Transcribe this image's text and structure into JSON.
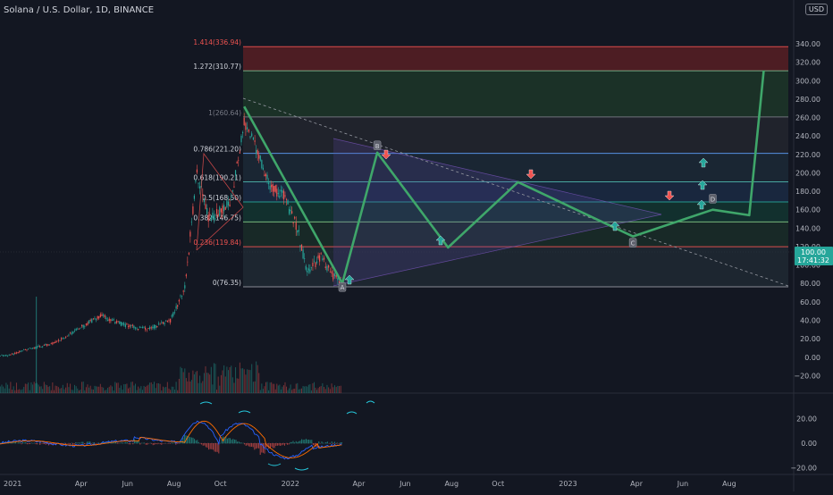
{
  "header": {
    "symbol_title": "Solana / U.S. Dollar, 1D, BINANCE",
    "currency": "USD"
  },
  "colors": {
    "background": "#131722",
    "up": "#26a69a",
    "down": "#ef5350",
    "projection": "#3fa66a",
    "grid": "#2a2e39",
    "text": "#b2b5be"
  },
  "price_axis": {
    "ticks": [
      340,
      320,
      300,
      280,
      260,
      240,
      220,
      200,
      180,
      160,
      140,
      120,
      100,
      80,
      60,
      40,
      20,
      0,
      -20
    ],
    "tick_labels": [
      "340.00",
      "320.00",
      "300.00",
      "280.00",
      "260.00",
      "240.00",
      "220.00",
      "200.00",
      "180.00",
      "160.00",
      "140.00",
      "120.00",
      "100.00",
      "80.00",
      "60.00",
      "40.00",
      "20.00",
      "0.00",
      "−20.00"
    ],
    "current_price": "100.00",
    "countdown": "17:41:32"
  },
  "time_axis": {
    "labels": [
      "2021",
      "Apr",
      "Jun",
      "Aug",
      "Oct",
      "2022",
      "Apr",
      "Jun",
      "Aug",
      "Oct",
      "2023",
      "Apr",
      "Jun",
      "Aug"
    ]
  },
  "oscillator_axis": {
    "ticks": [
      20,
      0,
      -20
    ],
    "tick_labels": [
      "20.00",
      "0.00",
      "−20.00"
    ]
  },
  "fib_levels": [
    {
      "ratio": "1.414",
      "price": 336.94,
      "label": "1.414(336.94)",
      "label_color": "#ef5350"
    },
    {
      "ratio": "1.272",
      "price": 310.77,
      "label": "1.272(310.77)",
      "label_color": "#d1d4dc"
    },
    {
      "ratio": "1",
      "price": 260.64,
      "label": "1(260.64)",
      "label_color": "#787b86"
    },
    {
      "ratio": "0.786",
      "price": 221.2,
      "label": "0.786(221.20)",
      "label_color": "#d1d4dc"
    },
    {
      "ratio": "0.618",
      "price": 190.21,
      "label": "0.618(190.21)",
      "label_color": "#d1d4dc"
    },
    {
      "ratio": "0.5",
      "price": 168.5,
      "label": "0.5(168.50)",
      "label_color": "#d1d4dc"
    },
    {
      "ratio": "0.382",
      "price": 146.75,
      "label": "0.382(146.75)",
      "label_color": "#d1d4dc"
    },
    {
      "ratio": "0.236",
      "price": 119.84,
      "label": "0.236(119.84)",
      "label_color": "#ef5350"
    },
    {
      "ratio": "0",
      "price": 76.35,
      "label": "0(76.35)",
      "label_color": "#d1d4dc"
    }
  ],
  "wave_points": [
    {
      "label": "A",
      "price": 80
    },
    {
      "label": "B",
      "price": 222
    },
    {
      "label": "C",
      "price": 131
    },
    {
      "label": "D",
      "price": 170
    }
  ],
  "chart_data": {
    "type": "line",
    "title": "Solana / U.S. Dollar, 1D, BINANCE",
    "y_unit": "USD",
    "ylim": [
      -30,
      345
    ],
    "grid": true,
    "series": [
      {
        "values_description": "",
        "x": [
          "2020-12",
          "2021-01",
          "2021-02",
          "2021-03",
          "2021-04",
          "2021-05",
          "2021-06",
          "2021-07",
          "2021-08",
          "2021-08-20",
          "2021-09-05",
          "2021-09-20",
          "2021-10-01",
          "2021-10-20",
          "2021-11-06",
          "2021-11-20",
          "2021-12-10",
          "2021-12-28",
          "2022-01-15",
          "2022-01-28",
          "2022-02-15",
          "2022-03-01",
          "2022-03-15"
        ],
        "y": [
          1.5,
          2,
          10,
          15,
          30,
          45,
          35,
          30,
          40,
          75,
          200,
          150,
          155,
          170,
          255,
          230,
          185,
          175,
          140,
          90,
          110,
          90,
          80
        ]
      },
      {
        "name": "",
        "x": [
          "2021-11-06",
          "2022-03-15",
          "2022-04-30",
          "2022-08-01",
          "2022-11-01",
          "2023-04-01",
          "2023-07-15",
          "2023-09-01",
          "2023-09-20"
        ],
        "y": [
          272,
          80,
          222,
          119,
          190,
          131,
          160,
          154,
          311
        ]
      }
    ],
    "oscillator": {
      "ylim": [
        -25,
        25
      ],
      "tick_labels": [
        "20.00",
        "0.00",
        "−20.00"
      ]
    }
  }
}
